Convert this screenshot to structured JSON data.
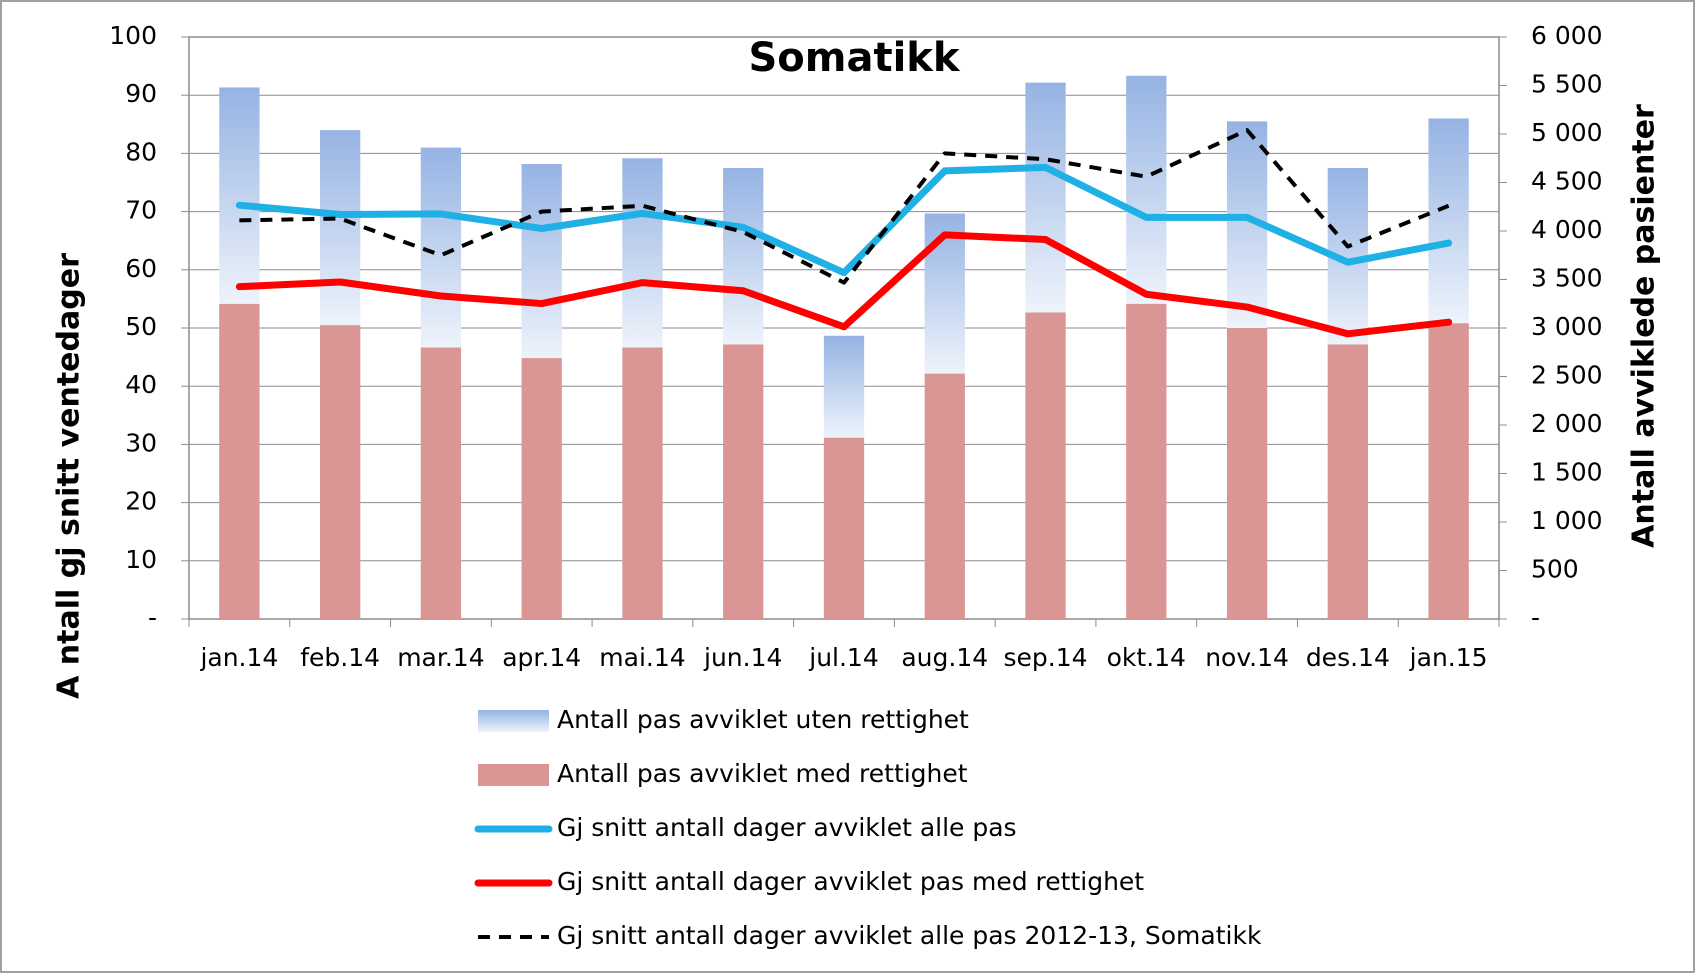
{
  "chart_data": {
    "type": "bar",
    "title": "Somatikk",
    "y_label": "A ntall gj snitt ventedager",
    "y2_label": "Antall avviklede pasienter",
    "categories": [
      "jan.14",
      "feb.14",
      "mar.14",
      "apr.14",
      "mai.14",
      "jun.14",
      "jul.14",
      "aug.14",
      "sep.14",
      "okt.14",
      "nov.14",
      "des.14",
      "jan.15"
    ],
    "series": [
      {
        "name": "Antall pas avviklet uten rettighet",
        "type": "bar",
        "axis": "y2",
        "color": "#95b3e3",
        "values": [
          2230,
          2010,
          2060,
          2000,
          1950,
          1820,
          1050,
          1650,
          2370,
          2350,
          2130,
          1820,
          2110
        ]
      },
      {
        "name": "Antall pas avviklet med rettighet",
        "type": "bar",
        "axis": "y2",
        "color": "#d99694",
        "values": [
          3250,
          3030,
          2800,
          2690,
          2800,
          2830,
          1870,
          2530,
          3160,
          3250,
          3000,
          2830,
          3050
        ]
      },
      {
        "name": "Gj snitt antall dager avviklet alle pas",
        "type": "line",
        "color": "#1fb1e6",
        "values": [
          71.1,
          69.5,
          69.6,
          67.1,
          69.7,
          67.3,
          59.5,
          77.0,
          77.6,
          69.0,
          69.0,
          61.3,
          64.6
        ]
      },
      {
        "name": "Gj snitt antall dager avviklet pas med rettighet",
        "type": "line",
        "color": "#ff0000",
        "values": [
          57.1,
          57.9,
          55.5,
          54.2,
          57.8,
          56.4,
          50.2,
          66.0,
          65.2,
          55.8,
          53.6,
          49.0,
          51.0
        ]
      },
      {
        "name": "Gj snitt antall dager avviklet alle pas 2012-13, Somatikk",
        "type": "line",
        "color": "#000000",
        "dashed": true,
        "values": [
          68.5,
          68.8,
          62.5,
          70.0,
          71.0,
          66.5,
          57.8,
          80.0,
          79.0,
          76.0,
          84.0,
          64.0,
          71.0
        ]
      }
    ],
    "ylim": [
      0,
      100
    ],
    "yticks": [
      {
        "value": 0,
        "label": "-"
      },
      10,
      20,
      30,
      40,
      50,
      60,
      70,
      80,
      90,
      100
    ],
    "y2lim": [
      0,
      6000
    ],
    "y2ticks": [
      {
        "value": 0,
        "label": "-"
      },
      500,
      {
        "value": 1000,
        "label": "1 000"
      },
      {
        "value": 1500,
        "label": "1 500"
      },
      {
        "value": 2000,
        "label": "2 000"
      },
      {
        "value": 2500,
        "label": "2 500"
      },
      {
        "value": 3000,
        "label": "3 000"
      },
      {
        "value": 3500,
        "label": "3 500"
      },
      {
        "value": 4000,
        "label": "4 000"
      },
      {
        "value": 4500,
        "label": "4 500"
      },
      {
        "value": 5000,
        "label": "5 000"
      },
      {
        "value": 5500,
        "label": "5 500"
      },
      {
        "value": 6000,
        "label": "6 000"
      }
    ],
    "grid": true,
    "legend": "bottom"
  }
}
